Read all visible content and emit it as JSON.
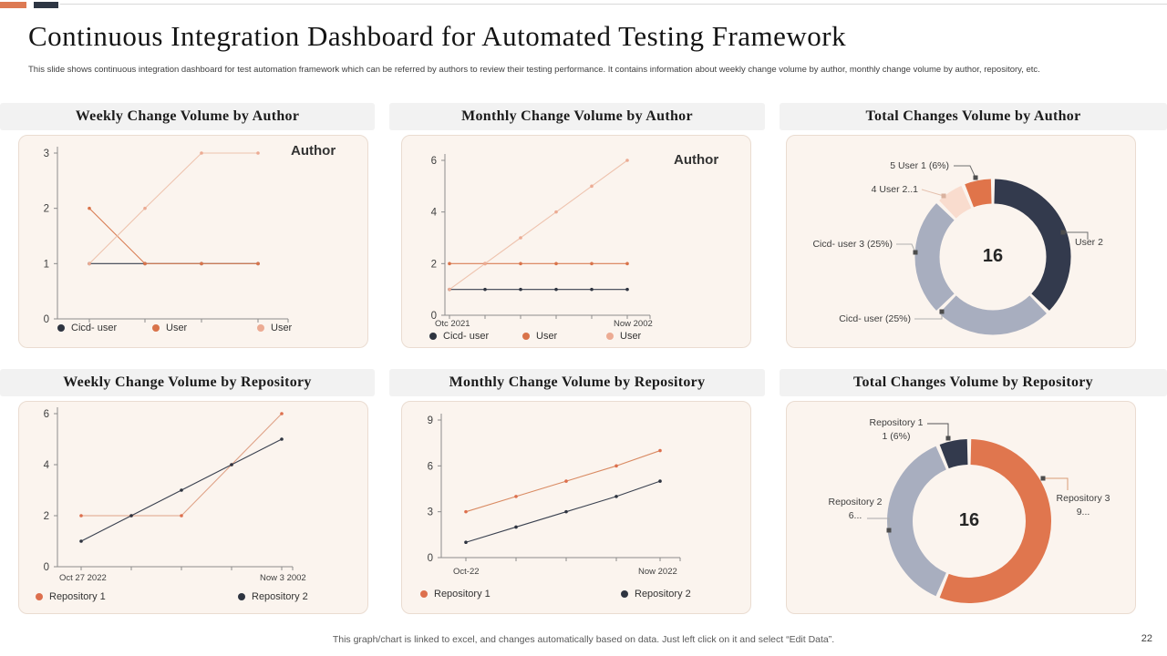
{
  "page": {
    "title": "Continuous Integration Dashboard for Automated Testing Framework",
    "subtitle": "This slide shows continuous integration dashboard for test automation framework which can be referred by authors to review their testing performance. It contains information about weekly change volume by author, monthly change volume by author, repository, etc.",
    "footer_note": "This graph/chart is linked to excel, and changes automatically based on data. Just left click on it and select “Edit Data”.",
    "page_number": "22"
  },
  "colors": {
    "accent_orange": "#dd7a53",
    "dark_navy": "#2e3644",
    "donut_gray": "#a8aebf",
    "donut_peach": "#f9dcce",
    "card_bg": "#fbf4ee",
    "header_bg": "#f2f2f2"
  },
  "chart_data": [
    {
      "type": "line",
      "title": "Weekly Change Volume by Author",
      "annotation": "Author",
      "ylim": [
        0,
        3
      ],
      "yticks": [
        0,
        1,
        2,
        3
      ],
      "xlabels": [],
      "series": [
        {
          "name": "Cicd- user",
          "color": "#39404f",
          "dot": "#2e3440",
          "values": [
            1,
            1,
            1,
            1
          ]
        },
        {
          "name": "User",
          "color": "#d97e55",
          "dot": "#d9734a",
          "values": [
            2,
            1,
            1,
            1
          ]
        },
        {
          "name": "User",
          "color": "#eec3ae",
          "dot": "#ecab93",
          "values": [
            1,
            2,
            3,
            3
          ]
        }
      ]
    },
    {
      "type": "line",
      "title": "Monthly Change Volume by Author",
      "annotation": "Author",
      "ylim": [
        0,
        6
      ],
      "yticks": [
        0,
        2,
        4,
        6
      ],
      "xlabels": [
        "Otc 2021",
        "Now 2002"
      ],
      "series": [
        {
          "name": "Cicd- user",
          "color": "#39404f",
          "dot": "#2e3440",
          "values": [
            1,
            1,
            1,
            1,
            1,
            1
          ]
        },
        {
          "name": "User",
          "color": "#d97e55",
          "dot": "#d9734a",
          "values": [
            2,
            2,
            2,
            2,
            2,
            2
          ]
        },
        {
          "name": "User",
          "color": "#eec3ae",
          "dot": "#ecab93",
          "values": [
            1,
            2,
            3,
            4,
            5,
            6
          ]
        }
      ]
    },
    {
      "type": "donut",
      "title": "Total Changes Volume by Author",
      "center_label": "16",
      "total": 16,
      "slices": [
        {
          "name": "User 2",
          "value": 6,
          "color": "#333a4d"
        },
        {
          "name": "Cicd- user (25%)",
          "value": 4,
          "color": "#a8aebf"
        },
        {
          "name": "Cicd- user 3 (25%)",
          "value": 4,
          "color": "#a8aebf"
        },
        {
          "name": "4 User 2..1",
          "value": 1,
          "color": "#f9dcce"
        },
        {
          "name": "5 User 1 (6%)",
          "value": 1,
          "color": "#e0744a"
        }
      ]
    },
    {
      "type": "line",
      "title": "Weekly Change Volume by Repository",
      "annotation": "",
      "ylim": [
        0,
        6
      ],
      "yticks": [
        0,
        2,
        4,
        6
      ],
      "xlabels": [
        "Oct 27 2022",
        "Now 3 2002"
      ],
      "series": [
        {
          "name": "Repository 1",
          "color": "#dfa287",
          "dot": "#dd6f4d",
          "values": [
            2,
            2,
            2,
            4,
            6
          ]
        },
        {
          "name": "Repository 2",
          "color": "#39404f",
          "dot": "#2e3440",
          "values": [
            1,
            2,
            3,
            4,
            5
          ]
        }
      ]
    },
    {
      "type": "line",
      "title": "Monthly Change Volume by Repository",
      "annotation": "",
      "ylim": [
        0,
        9
      ],
      "yticks": [
        0,
        3,
        6,
        9
      ],
      "xlabels": [
        "Oct-22",
        "Now 2022"
      ],
      "series": [
        {
          "name": "Repository 1",
          "color": "#d98a62",
          "dot": "#dd6f4d",
          "values": [
            3,
            4,
            5,
            6,
            7
          ]
        },
        {
          "name": "Repository 2",
          "color": "#39404f",
          "dot": "#2e3440",
          "values": [
            1,
            2,
            3,
            4,
            5
          ]
        }
      ]
    },
    {
      "type": "donut",
      "title": "Total Changes Volume by Repository",
      "center_label": "16",
      "total": 16,
      "slices": [
        {
          "name": "Repository 3",
          "value": 9,
          "value_label": "9...",
          "color": "#e0764e"
        },
        {
          "name": "Repository 2",
          "value": 6,
          "value_label": "6...",
          "color": "#a8aebf"
        },
        {
          "name": "Repository 1",
          "value": 1,
          "value_label": "1 (6%)",
          "color": "#333a4d"
        }
      ]
    }
  ]
}
